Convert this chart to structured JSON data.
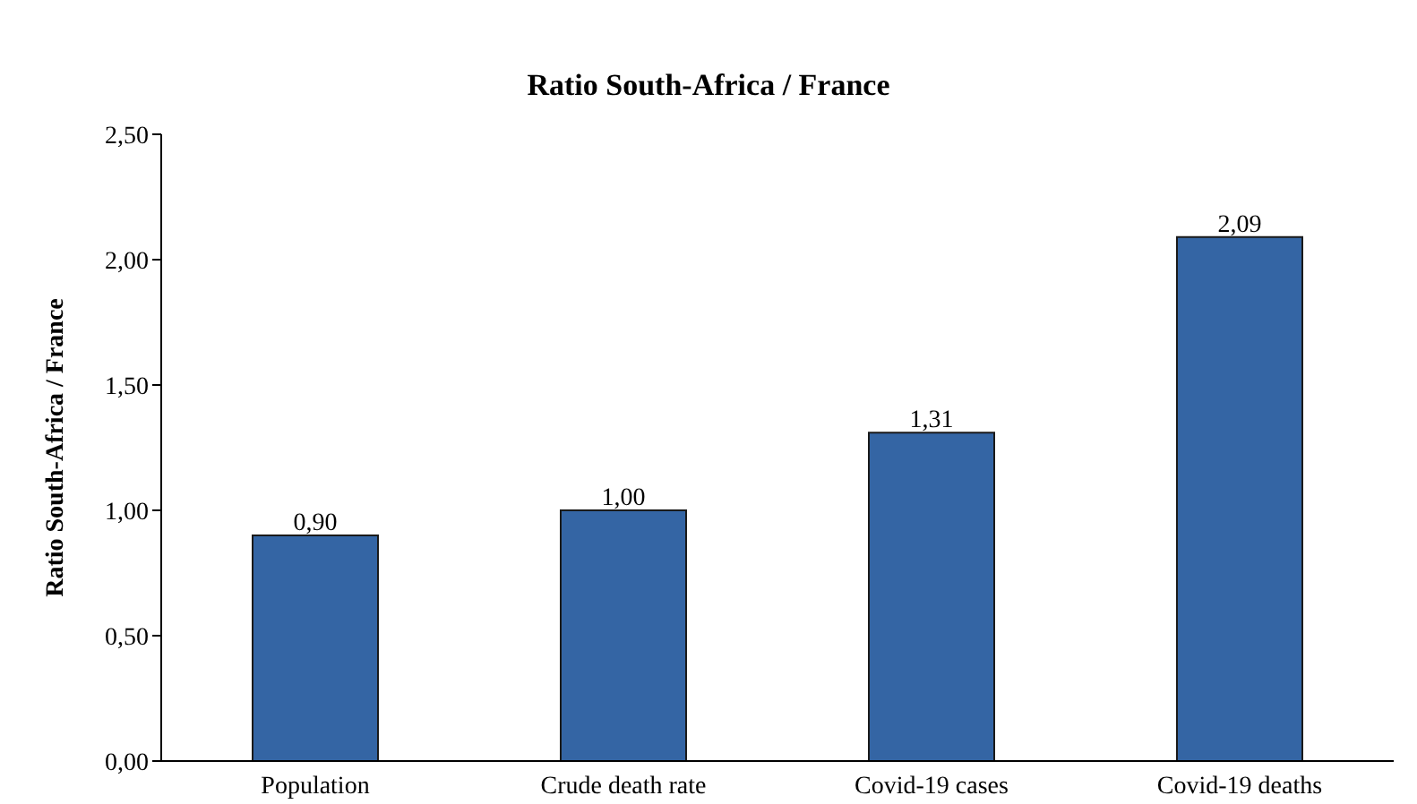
{
  "chart_data": {
    "type": "bar",
    "title": "Ratio South-Africa / France",
    "ylabel": "Ratio South-Africa / France",
    "categories": [
      "Population",
      "Crude death rate",
      "Covid-19 cases",
      "Covid-19 deaths"
    ],
    "values": [
      0.9,
      1.0,
      1.31,
      2.09
    ],
    "value_labels": [
      "0,90",
      "1,00",
      "1,31",
      "2,09"
    ],
    "color": "#3465a4",
    "ylim": [
      0,
      2.5
    ],
    "yticks": [
      {
        "value": 0,
        "label": "0,00"
      },
      {
        "value": 0.5,
        "label": "0,50"
      },
      {
        "value": 1,
        "label": "1,00"
      },
      {
        "value": 1.5,
        "label": "1,50"
      },
      {
        "value": 2,
        "label": "2,00"
      },
      {
        "value": 2.5,
        "label": "2,50"
      }
    ],
    "grid": false,
    "legend": false
  }
}
